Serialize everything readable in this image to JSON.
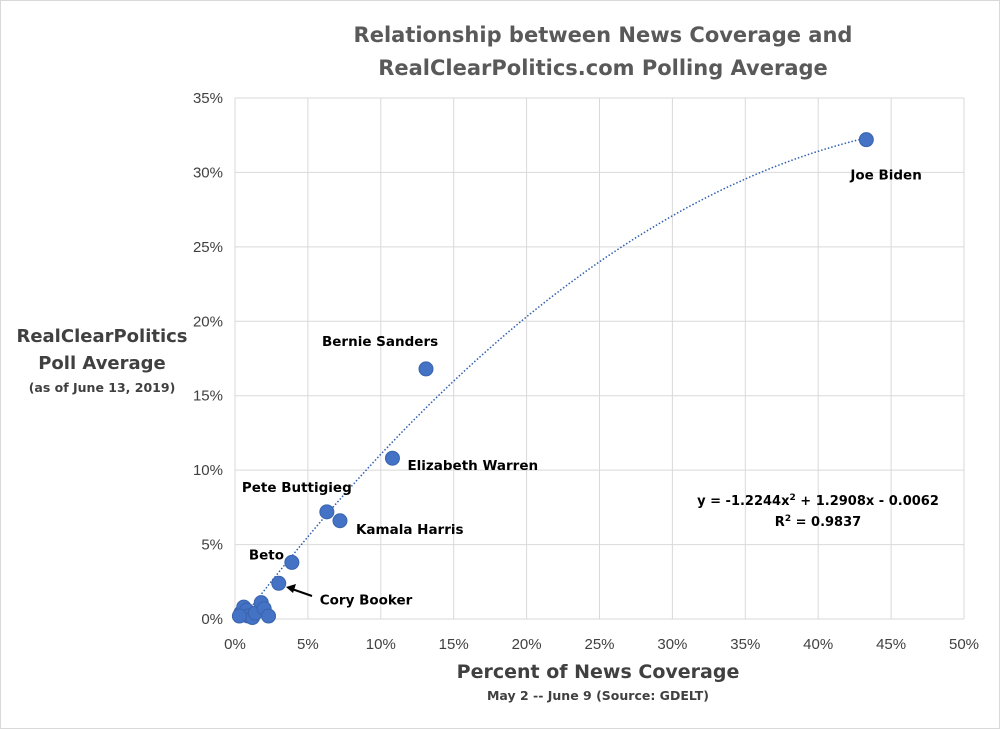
{
  "chart_data": {
    "type": "scatter",
    "title": [
      "Relationship between News Coverage and",
      "RealClearPolitics.com Polling Average"
    ],
    "xlabel": "Percent of News Coverage",
    "xsublabel": "May 2 -- June 9 (Source: GDELT)",
    "ylabel": [
      "RealClearPolitics",
      "Poll Average"
    ],
    "ysublabel": "(as of June 13, 2019)",
    "xlim": [
      0,
      0.5
    ],
    "ylim": [
      0,
      0.35
    ],
    "xticks": [
      0,
      0.05,
      0.1,
      0.15,
      0.2,
      0.25,
      0.3,
      0.35,
      0.4,
      0.45,
      0.5
    ],
    "yticks": [
      0,
      0.05,
      0.1,
      0.15,
      0.2,
      0.25,
      0.3,
      0.35
    ],
    "xtick_labels": [
      "0%",
      "5%",
      "10%",
      "15%",
      "20%",
      "25%",
      "30%",
      "35%",
      "40%",
      "45%",
      "50%"
    ],
    "ytick_labels": [
      "0%",
      "5%",
      "10%",
      "15%",
      "20%",
      "25%",
      "30%",
      "35%"
    ],
    "grid": true,
    "marker_color": "#4472c4",
    "trend_color": "#2e5fb0",
    "points": [
      {
        "name": "Joe Biden",
        "x": 0.433,
        "y": 0.322
      },
      {
        "name": "Bernie Sanders",
        "x": 0.131,
        "y": 0.168
      },
      {
        "name": "Elizabeth Warren",
        "x": 0.108,
        "y": 0.108
      },
      {
        "name": "Pete Buttigieg",
        "x": 0.063,
        "y": 0.072
      },
      {
        "name": "Kamala Harris",
        "x": 0.072,
        "y": 0.066
      },
      {
        "name": "Beto",
        "x": 0.039,
        "y": 0.038
      },
      {
        "name": "Cory Booker",
        "x": 0.03,
        "y": 0.024
      },
      {
        "name": "",
        "x": 0.004,
        "y": 0.004
      },
      {
        "name": "",
        "x": 0.006,
        "y": 0.008
      },
      {
        "name": "",
        "x": 0.008,
        "y": 0.006
      },
      {
        "name": "",
        "x": 0.009,
        "y": 0.002
      },
      {
        "name": "",
        "x": 0.012,
        "y": 0.001
      },
      {
        "name": "",
        "x": 0.014,
        "y": 0.004
      },
      {
        "name": "",
        "x": 0.018,
        "y": 0.011
      },
      {
        "name": "",
        "x": 0.02,
        "y": 0.007
      },
      {
        "name": "",
        "x": 0.023,
        "y": 0.002
      },
      {
        "name": "",
        "x": 0.003,
        "y": 0.002
      }
    ],
    "trendline": {
      "type": "polynomial",
      "coefficients": [
        -1.2244,
        1.2908,
        -0.0062
      ],
      "equation_prefix": "y = -1.2244x",
      "equation_power": "2",
      "equation_suffix": " + 1.2908x - 0.0062",
      "r2_prefix": "R",
      "r2_power": "2",
      "r2_suffix": " = 0.9837"
    }
  }
}
